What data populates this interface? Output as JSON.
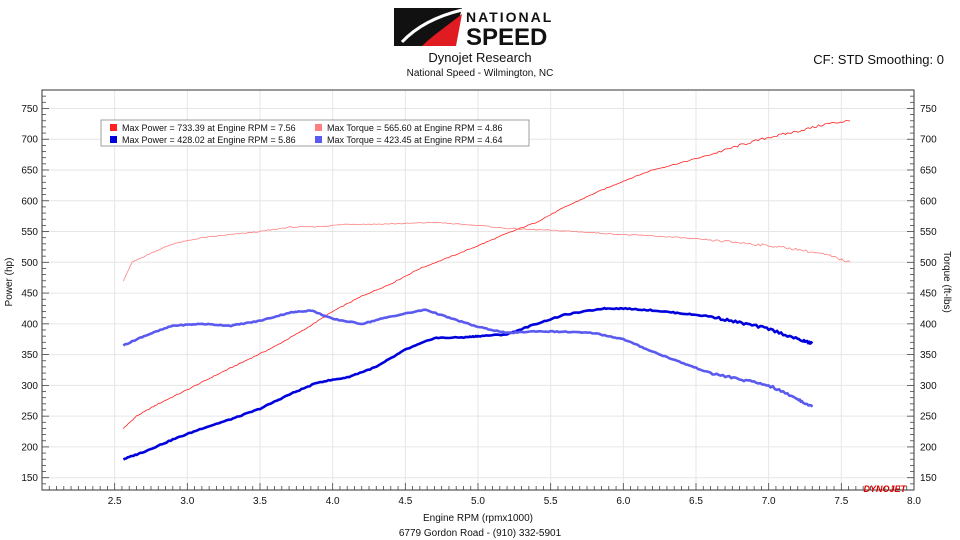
{
  "header": {
    "logo_text_top": "NATIONAL",
    "logo_text_bottom": "SPEED",
    "title": "Dynojet Research",
    "subtitle": "National Speed - Wilmington, NC",
    "cf_label": "CF: STD Smoothing: 0",
    "footer": "6779 Gordon Road - (910) 332-5901",
    "watermark": "DYNOJET"
  },
  "colors": {
    "power_run1": "#ff2020",
    "torque_run1": "#ff8080",
    "power_run2": "#0000dd",
    "torque_run2": "#5a5af0"
  },
  "chart_data": {
    "type": "line",
    "xlabel": "Engine RPM (rpmx1000)",
    "ylabel_left": "Power (hp)",
    "ylabel_right": "Torque (ft-lbs)",
    "xlim": [
      2.0,
      8.0
    ],
    "ylim": [
      130,
      780
    ],
    "x_ticks": [
      2.5,
      3.0,
      3.5,
      4.0,
      4.5,
      5.0,
      5.5,
      6.0,
      6.5,
      7.0,
      7.5,
      8.0
    ],
    "x_tick_labels": [
      "2.5",
      "3.0",
      "3.5",
      "4.0",
      "4.5",
      "5.0",
      "5.5",
      "6.0",
      "6.5",
      "7.0",
      "7.5",
      "8.0"
    ],
    "y_ticks": [
      150,
      200,
      250,
      300,
      350,
      400,
      450,
      500,
      550,
      600,
      650,
      700,
      750
    ],
    "y_tick_labels": [
      "150",
      "200",
      "250",
      "300",
      "350",
      "400",
      "450",
      "500",
      "550",
      "600",
      "650",
      "700",
      "750"
    ],
    "grid": true,
    "legend_position": "top-left",
    "legend": [
      {
        "text": "Max Power = 733.39 at Engine RPM = 7.56",
        "series": 0
      },
      {
        "text": "Max Torque = 565.60 at Engine RPM = 4.86",
        "series": 1
      },
      {
        "text": "Max Power = 428.02 at Engine RPM = 5.86",
        "series": 2
      },
      {
        "text": "Max Torque = 423.45 at Engine RPM = 4.64",
        "series": 3
      }
    ],
    "series": [
      {
        "color_key": "power_run1",
        "width": 0.8,
        "x": [
          2.56,
          2.65,
          2.8,
          3.0,
          3.2,
          3.4,
          3.6,
          3.8,
          4.0,
          4.2,
          4.4,
          4.6,
          4.8,
          5.0,
          5.2,
          5.4,
          5.6,
          5.8,
          6.0,
          6.2,
          6.4,
          6.6,
          6.8,
          7.0,
          7.2,
          7.4,
          7.56
        ],
        "y": [
          230,
          250,
          270,
          293,
          317,
          340,
          363,
          390,
          420,
          445,
          465,
          490,
          508,
          527,
          547,
          565,
          590,
          612,
          632,
          650,
          662,
          675,
          690,
          703,
          713,
          725,
          730
        ]
      },
      {
        "color_key": "torque_run1",
        "width": 0.8,
        "x": [
          2.56,
          2.62,
          2.75,
          2.9,
          3.1,
          3.3,
          3.5,
          3.7,
          3.9,
          4.1,
          4.3,
          4.5,
          4.7,
          4.86,
          5.0,
          5.2,
          5.4,
          5.6,
          5.8,
          6.0,
          6.2,
          6.4,
          6.6,
          6.8,
          7.0,
          7.2,
          7.4,
          7.56
        ],
        "y": [
          470,
          500,
          515,
          530,
          540,
          545,
          550,
          557,
          558,
          562,
          562,
          563,
          565,
          562,
          560,
          555,
          553,
          551,
          548,
          545,
          543,
          540,
          536,
          532,
          527,
          521,
          512,
          500
        ]
      },
      {
        "color_key": "power_run2",
        "width": 2.6,
        "x": [
          2.56,
          2.7,
          2.9,
          3.1,
          3.3,
          3.5,
          3.7,
          3.9,
          4.1,
          4.3,
          4.5,
          4.7,
          4.9,
          5.0,
          5.2,
          5.4,
          5.6,
          5.86,
          6.0,
          6.2,
          6.4,
          6.6,
          6.8,
          7.0,
          7.2,
          7.3
        ],
        "y": [
          180,
          192,
          212,
          230,
          245,
          262,
          285,
          305,
          313,
          330,
          358,
          377,
          378,
          380,
          383,
          400,
          415,
          425,
          425,
          422,
          417,
          412,
          402,
          392,
          375,
          368
        ]
      },
      {
        "color_key": "torque_run2",
        "width": 2.6,
        "x": [
          2.56,
          2.7,
          2.9,
          3.1,
          3.3,
          3.5,
          3.7,
          3.85,
          4.0,
          4.2,
          4.4,
          4.64,
          4.8,
          5.0,
          5.2,
          5.4,
          5.6,
          5.8,
          6.0,
          6.2,
          6.4,
          6.6,
          6.8,
          7.0,
          7.2,
          7.3
        ],
        "y": [
          365,
          380,
          397,
          400,
          397,
          405,
          418,
          422,
          408,
          400,
          412,
          423,
          410,
          395,
          385,
          388,
          387,
          385,
          375,
          355,
          337,
          320,
          310,
          300,
          278,
          265
        ]
      }
    ]
  }
}
